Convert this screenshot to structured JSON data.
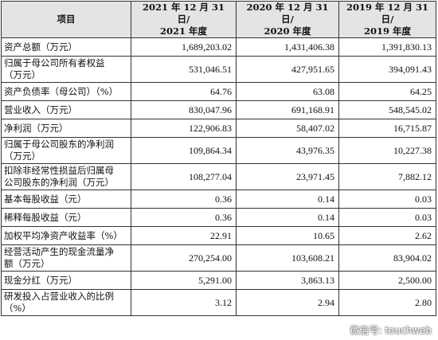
{
  "table": {
    "headers": [
      "项目",
      "2021 年 12 月 31 日/",
      "2021 年度",
      "2020 年 12 月 31 日/",
      "2020 年度",
      "2019 年 12 月 31 日/",
      "2019 年度"
    ],
    "rows": [
      {
        "label": [
          "资产总额（万元）"
        ],
        "v2021": "1,689,203.02",
        "v2020": "1,431,406.38",
        "v2019": "1,391,830.13"
      },
      {
        "label": [
          "归属于母公司所有者权益",
          "（万元）"
        ],
        "v2021": "531,046.51",
        "v2020": "427,951.65",
        "v2019": "394,091.43"
      },
      {
        "label": [
          "资产负债率（母公司）（%）"
        ],
        "v2021": "64.76",
        "v2020": "63.08",
        "v2019": "64.25"
      },
      {
        "label": [
          "营业收入（万元）"
        ],
        "v2021": "830,047.96",
        "v2020": "691,168.91",
        "v2019": "548,545.02"
      },
      {
        "label": [
          "净利润（万元）"
        ],
        "v2021": "122,906.83",
        "v2020": "58,407.02",
        "v2019": "16,715.87"
      },
      {
        "label": [
          "归属于母公司股东的净利润",
          "（万元）"
        ],
        "v2021": "109,864.34",
        "v2020": "43,976.35",
        "v2019": "10,227.38"
      },
      {
        "label": [
          "扣除非经常性损益后归属母",
          "公司股东的净利润（万元）"
        ],
        "v2021": "108,277.04",
        "v2020": "23,971.45",
        "v2019": "7,882.12"
      },
      {
        "label": [
          "基本每股收益（元）"
        ],
        "v2021": "0.36",
        "v2020": "0.14",
        "v2019": "0.03"
      },
      {
        "label": [
          "稀释每股收益（元）"
        ],
        "v2021": "0.36",
        "v2020": "0.14",
        "v2019": "0.03"
      },
      {
        "label": [
          "加权平均净资产收益率（%）"
        ],
        "v2021": "22.91",
        "v2020": "10.65",
        "v2019": "2.62"
      },
      {
        "label": [
          "经营活动产生的现金流量净",
          "额（万元）"
        ],
        "v2021": "270,254.00",
        "v2020": "103,608.21",
        "v2019": "83,904.02"
      },
      {
        "label": [
          "现金分红（万元）"
        ],
        "v2021": "5,291.00",
        "v2020": "3,863.13",
        "v2019": "2,500.00"
      },
      {
        "label": [
          "研发投入占营业收入的比例",
          "（%）"
        ],
        "v2021": "3.12",
        "v2020": "2.94",
        "v2019": "2.80"
      }
    ]
  },
  "watermark": {
    "text": "微信号: touchweb",
    "icon": "wechat-icon"
  }
}
